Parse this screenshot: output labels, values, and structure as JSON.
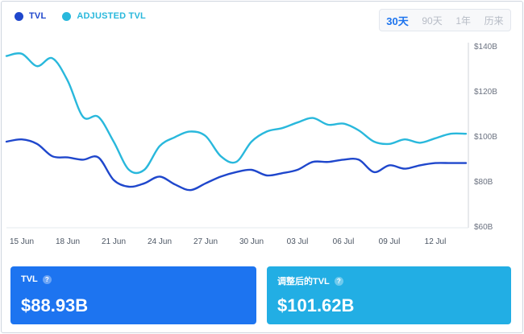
{
  "legend": {
    "tvl_label": "TVL",
    "adjusted_label": "ADJUSTED TVL"
  },
  "range_tabs": [
    "30天",
    "90天",
    "1年",
    "历来"
  ],
  "active_range": "30天",
  "colors": {
    "tvl": "#1f47cc",
    "adjusted": "#29b8dc",
    "card_tvl": "#1d74f0",
    "card_adjusted": "#22aee4"
  },
  "cards": {
    "tvl": {
      "title": "TVL",
      "value": "$88.93B"
    },
    "adjusted": {
      "title": "调整后的TVL",
      "value": "$101.62B"
    }
  },
  "chart_data": {
    "type": "line",
    "x_tick_labels": [
      "15 Jun",
      "18 Jun",
      "21 Jun",
      "24 Jun",
      "27 Jun",
      "30 Jun",
      "03 Jul",
      "06 Jul",
      "09 Jul",
      "12 Jul"
    ],
    "y_tick_labels": [
      "$60B",
      "$80B",
      "$100B",
      "$120B",
      "$140B"
    ],
    "y_ticks": [
      60,
      80,
      100,
      120,
      140
    ],
    "ylim": [
      60,
      140
    ],
    "xlim": [
      14,
      44
    ],
    "y_axis_position": "right",
    "grid": false,
    "legend_position": "top-left",
    "series": [
      {
        "name": "TVL",
        "x": [
          14,
          15,
          16,
          17,
          18,
          19,
          20,
          21,
          22,
          23,
          24,
          25,
          26,
          27,
          28,
          29,
          30,
          31,
          32,
          33,
          34,
          35,
          36,
          37,
          38,
          39,
          40,
          41,
          42,
          43,
          44
        ],
        "y": [
          97.5,
          98.5,
          96.5,
          91,
          90.5,
          89.5,
          90.5,
          80.5,
          77.5,
          79,
          82,
          78.5,
          76,
          79,
          82,
          84,
          85,
          82.5,
          83.5,
          85,
          88.5,
          88.5,
          89.5,
          89.5,
          84,
          87,
          85.5,
          87,
          88,
          88,
          88
        ]
      },
      {
        "name": "ADJUSTED TVL",
        "x": [
          14,
          15,
          16,
          17,
          18,
          19,
          20,
          21,
          22,
          23,
          24,
          25,
          26,
          27,
          28,
          29,
          30,
          31,
          32,
          33,
          34,
          35,
          36,
          37,
          38,
          39,
          40,
          41,
          42,
          43,
          44
        ],
        "y": [
          135.5,
          136.5,
          131,
          134.5,
          124.5,
          108.5,
          108.5,
          97.5,
          85,
          85,
          95.5,
          99.5,
          102,
          100,
          91,
          88.5,
          97.5,
          102,
          103.5,
          106,
          108,
          105,
          105.5,
          102.5,
          97.5,
          96.5,
          98.5,
          97,
          99,
          101,
          101
        ]
      }
    ]
  }
}
